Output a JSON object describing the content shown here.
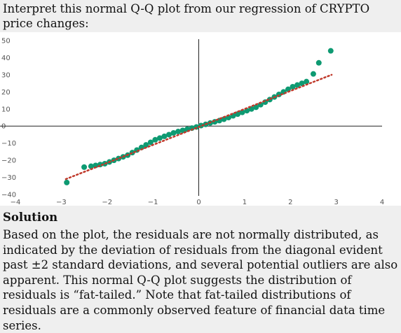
{
  "question": "Interpret this normal Q-Q plot from our regression of CRYPTO price changes:",
  "solution_heading": "Solution",
  "solution_text": "Based on the plot, the residuals are not normally distributed, as indicated by the deviation of residuals from the diagonal evident past ±2 standard deviations, and several potential outliers are also apparent. This normal Q-Q plot suggests the distribution of residuals is “fat-tailed.” Note that fat-tailed distributions of residuals are a commonly observed feature of financial data time series.",
  "chart_data": {
    "type": "scatter",
    "x_ticks": [
      "−4",
      "−3",
      "−2",
      "−1",
      "0",
      "1",
      "2",
      "3",
      "4"
    ],
    "y_ticks": [
      "50",
      "40",
      "30",
      "20",
      "10",
      "0",
      "−10",
      "−20",
      "−30",
      "−40"
    ],
    "xlim": [
      -4,
      4
    ],
    "ylim": [
      -40,
      50
    ],
    "grid": false,
    "point_color": "#0e9a72",
    "line_color": "#c0392b",
    "reference_line": {
      "x": [
        -2.9,
        2.9
      ],
      "y": [
        -31,
        30
      ]
    },
    "points": [
      [
        -2.88,
        -33
      ],
      [
        -2.5,
        -24
      ],
      [
        -2.35,
        -23.5
      ],
      [
        -2.25,
        -23
      ],
      [
        -2.15,
        -22.5
      ],
      [
        -2.05,
        -22
      ],
      [
        -1.95,
        -21
      ],
      [
        -1.85,
        -20
      ],
      [
        -1.75,
        -19
      ],
      [
        -1.65,
        -18
      ],
      [
        -1.55,
        -17
      ],
      [
        -1.45,
        -15.5
      ],
      [
        -1.35,
        -14
      ],
      [
        -1.25,
        -12.5
      ],
      [
        -1.15,
        -11
      ],
      [
        -1.05,
        -9.5
      ],
      [
        -0.95,
        -8
      ],
      [
        -0.85,
        -7
      ],
      [
        -0.75,
        -6
      ],
      [
        -0.65,
        -5
      ],
      [
        -0.55,
        -4
      ],
      [
        -0.45,
        -3.2
      ],
      [
        -0.35,
        -2.5
      ],
      [
        -0.25,
        -1.8
      ],
      [
        -0.15,
        -1.2
      ],
      [
        -0.05,
        -0.5
      ],
      [
        0.05,
        0.3
      ],
      [
        0.15,
        1
      ],
      [
        0.25,
        1.8
      ],
      [
        0.35,
        2.5
      ],
      [
        0.45,
        3.2
      ],
      [
        0.55,
        4
      ],
      [
        0.65,
        5
      ],
      [
        0.75,
        6
      ],
      [
        0.85,
        7
      ],
      [
        0.95,
        8
      ],
      [
        1.05,
        9
      ],
      [
        1.15,
        10
      ],
      [
        1.25,
        11
      ],
      [
        1.35,
        12.5
      ],
      [
        1.45,
        14
      ],
      [
        1.55,
        15.5
      ],
      [
        1.65,
        17
      ],
      [
        1.75,
        18.5
      ],
      [
        1.85,
        20
      ],
      [
        1.95,
        21.5
      ],
      [
        2.05,
        23
      ],
      [
        2.15,
        24
      ],
      [
        2.25,
        25
      ],
      [
        2.35,
        26
      ],
      [
        2.5,
        30.5
      ],
      [
        2.62,
        37
      ],
      [
        2.88,
        44
      ]
    ]
  }
}
